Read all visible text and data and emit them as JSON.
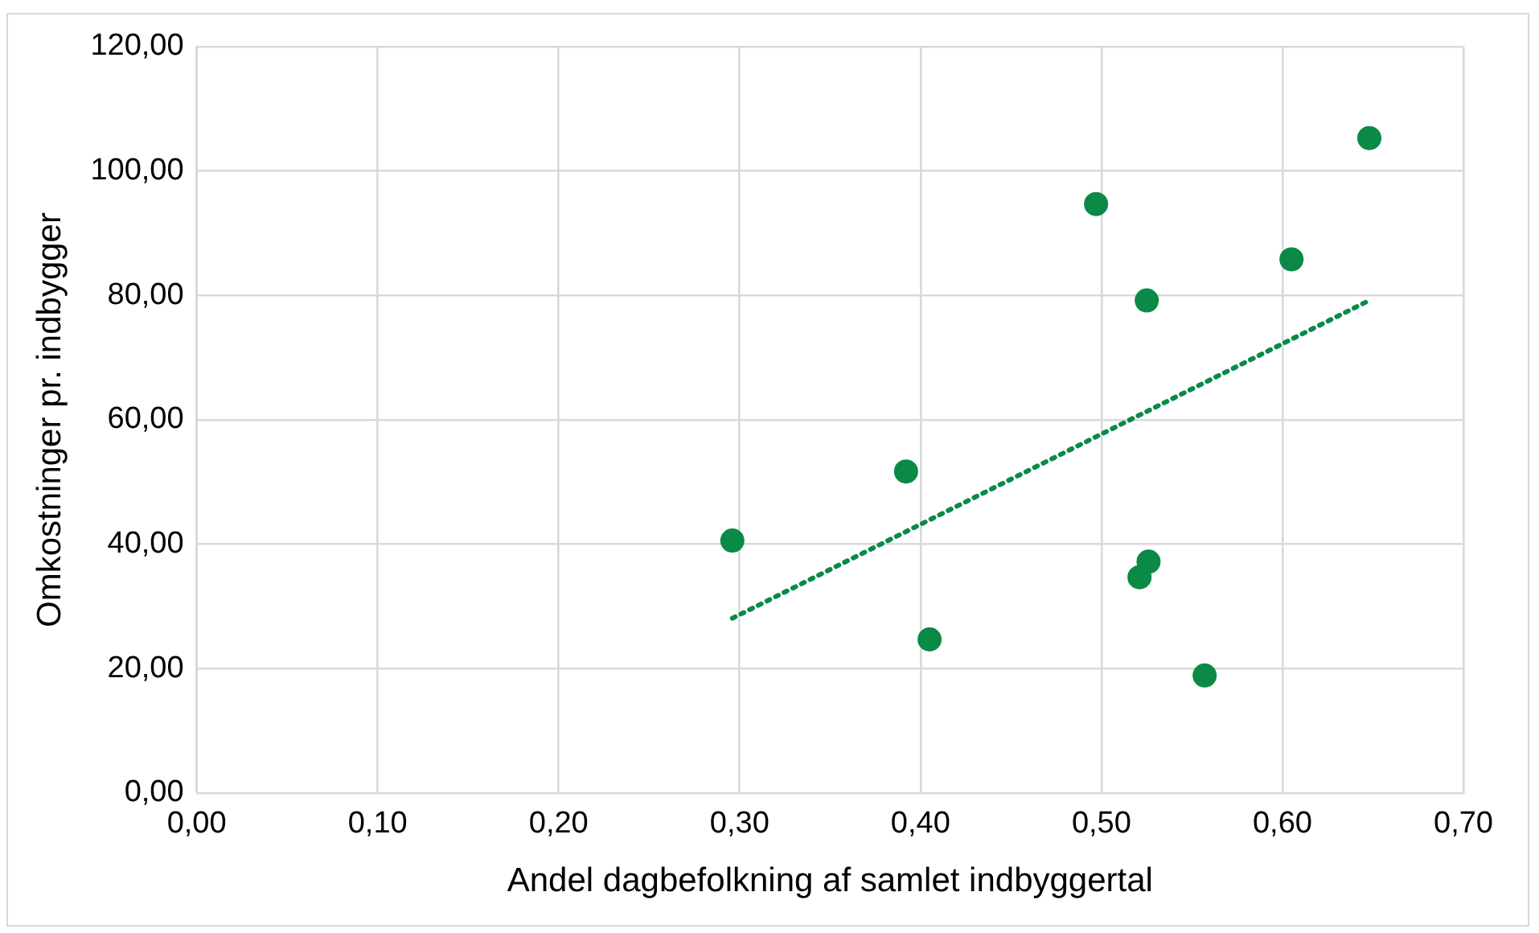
{
  "chart_data": {
    "type": "scatter",
    "xlabel": "Andel dagbefolkning af samlet indbyggertal",
    "ylabel": "Omkostninger pr. indbygger",
    "series": [
      {
        "type": "scatter",
        "color": "#0b8a47",
        "marker": "circle",
        "x": [
          0.296,
          0.392,
          0.405,
          0.497,
          0.525,
          0.521,
          0.526,
          0.557,
          0.605,
          0.648
        ],
        "values": [
          40.6,
          51.7,
          24.7,
          94.7,
          79.2,
          34.7,
          37.2,
          18.9,
          85.8,
          105.3
        ]
      },
      {
        "type": "line",
        "color": "#0b8a47",
        "line_style": "dotted",
        "marker": "none",
        "x": [
          0.296,
          0.648
        ],
        "values": [
          28.1,
          79.2
        ]
      }
    ],
    "xlim": [
      0,
      0.7
    ],
    "xticks": [
      {
        "value": 0,
        "label": "0,00"
      },
      {
        "value": 0.1,
        "label": "0,10"
      },
      {
        "value": 0.2,
        "label": "0,20"
      },
      {
        "value": 0.3,
        "label": "0,30"
      },
      {
        "value": 0.4,
        "label": "0,40"
      },
      {
        "value": 0.5,
        "label": "0,50"
      },
      {
        "value": 0.6,
        "label": "0,60"
      },
      {
        "value": 0.7,
        "label": "0,70"
      }
    ],
    "ylim": [
      0,
      120
    ],
    "yticks": [
      {
        "value": 0,
        "label": "0,00"
      },
      {
        "value": 20,
        "label": "20,00"
      },
      {
        "value": 40,
        "label": "40,00"
      },
      {
        "value": 60,
        "label": "60,00"
      },
      {
        "value": 80,
        "label": "80,00"
      },
      {
        "value": 100,
        "label": "100,00"
      },
      {
        "value": 120,
        "label": "120,00"
      }
    ],
    "grid": true,
    "legend": false
  }
}
